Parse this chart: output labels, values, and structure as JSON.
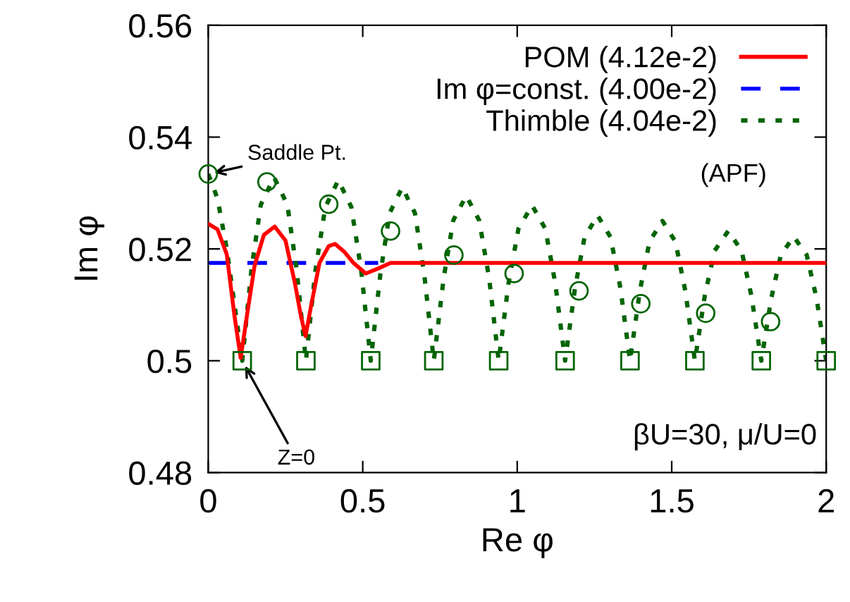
{
  "chart_data": {
    "type": "line",
    "xlabel": "Re φ",
    "ylabel": "Im φ",
    "xlim": [
      0,
      2
    ],
    "ylim": [
      0.48,
      0.56
    ],
    "xticks": [
      0,
      0.5,
      1,
      1.5,
      2
    ],
    "yticks": [
      0.48,
      0.5,
      0.52,
      0.54,
      0.56
    ],
    "grid": false,
    "legend": "top right",
    "marker": "none",
    "series": [
      {
        "name": "POM (4.12e-2)",
        "color": "#ff0000",
        "line_style": "solid",
        "x": [
          0,
          0.03,
          0.06,
          0.085,
          0.105,
          0.125,
          0.15,
          0.18,
          0.215,
          0.25,
          0.28,
          0.3,
          0.315,
          0.33,
          0.36,
          0.39,
          0.41,
          0.44,
          0.47,
          0.51,
          0.55,
          0.59,
          0.65,
          0.8,
          1.0,
          1.5,
          2.0
        ],
        "values": [
          0.5245,
          0.5235,
          0.519,
          0.508,
          0.5005,
          0.508,
          0.517,
          0.5225,
          0.524,
          0.5215,
          0.514,
          0.508,
          0.5044,
          0.509,
          0.5175,
          0.5205,
          0.5209,
          0.5195,
          0.5175,
          0.5156,
          0.5165,
          0.5175,
          0.5175,
          0.5175,
          0.5175,
          0.5175,
          0.5175
        ]
      },
      {
        "name": "Im φ=const. (4.00e-2)",
        "color": "#0000ff",
        "line_style": "dashed",
        "x": [
          0,
          0.55
        ],
        "values": [
          0.5175,
          0.5175
        ]
      },
      {
        "name": "Thimble (4.04e-2)",
        "color": "#006400",
        "line_style": "dotted",
        "x": [
          0,
          0.03,
          0.06,
          0.09,
          0.11,
          0.14,
          0.17,
          0.213,
          0.256,
          0.286,
          0.316,
          0.347,
          0.379,
          0.421,
          0.463,
          0.495,
          0.526,
          0.557,
          0.587,
          0.628,
          0.669,
          0.699,
          0.73,
          0.762,
          0.793,
          0.835,
          0.877,
          0.909,
          0.94,
          0.972,
          1.004,
          1.048,
          1.091,
          1.123,
          1.155,
          1.187,
          1.218,
          1.26,
          1.302,
          1.334,
          1.365,
          1.397,
          1.428,
          1.47,
          1.512,
          1.544,
          1.575,
          1.607,
          1.639,
          1.683,
          1.726,
          1.758,
          1.79,
          1.822,
          1.853,
          1.895,
          1.937,
          1.969,
          2.0
        ],
        "values": [
          0.5334,
          0.529,
          0.52,
          0.508,
          0.5,
          0.5164,
          0.5279,
          0.5328,
          0.5279,
          0.5164,
          0.5,
          0.5162,
          0.5275,
          0.5323,
          0.5275,
          0.5162,
          0.5,
          0.5155,
          0.5264,
          0.531,
          0.5264,
          0.5155,
          0.5,
          0.5148,
          0.5251,
          0.5295,
          0.5251,
          0.5148,
          0.5,
          0.5139,
          0.5236,
          0.5278,
          0.5236,
          0.5139,
          0.5,
          0.513,
          0.5221,
          0.526,
          0.5221,
          0.513,
          0.5,
          0.5125,
          0.5213,
          0.525,
          0.5213,
          0.5125,
          0.5,
          0.5116,
          0.5197,
          0.5232,
          0.5197,
          0.5116,
          0.5,
          0.5111,
          0.5189,
          0.5222,
          0.5189,
          0.5111,
          0.5
        ]
      },
      {
        "type": "scatter",
        "marker": "circle",
        "color": "#006400",
        "x": [
          0,
          0.19,
          0.39,
          0.59,
          0.795,
          0.99,
          1.2,
          1.4,
          1.61,
          1.82
        ],
        "values": [
          0.5334,
          0.532,
          0.528,
          0.5232,
          0.5189,
          0.5156,
          0.5125,
          0.5102,
          0.5085,
          0.507
        ]
      },
      {
        "type": "scatter",
        "marker": "square",
        "color": "#006400",
        "x": [
          0.11,
          0.316,
          0.526,
          0.73,
          0.94,
          1.155,
          1.365,
          1.575,
          1.79,
          2.0
        ],
        "values": [
          0.5,
          0.5,
          0.5,
          0.5,
          0.5,
          0.5,
          0.5,
          0.5,
          0.5,
          0.5
        ]
      }
    ],
    "annotations": [
      {
        "text": "Saddle Pt.",
        "x": 0,
        "y": 0.5334
      },
      {
        "text": "Z=0",
        "x": 0.11,
        "y": 0.5
      },
      "(APF)",
      "βU=30, μ/U=0"
    ]
  }
}
